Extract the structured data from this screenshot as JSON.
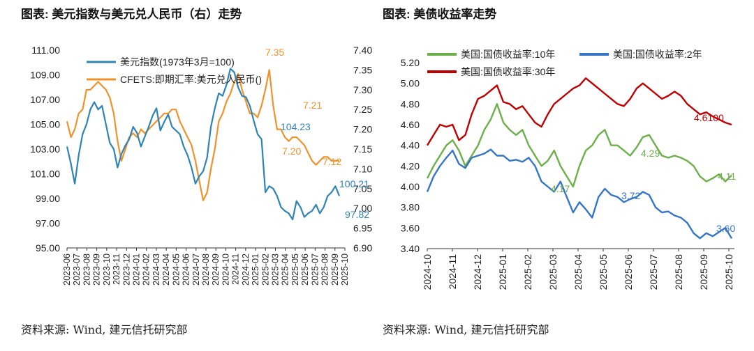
{
  "left": {
    "title": "图表:  美元指数与美元兑人民币（右）走势",
    "source": "资料来源:  Wind,  建元信托研究部"
  },
  "right": {
    "title": "图表:  美债收益率走势",
    "source": "资料来源:  Wind,  建元信托研究部"
  },
  "colors": {
    "blue": "#2E84B6",
    "orange": "#F0922B",
    "green": "#6BB048",
    "blue2": "#3575C8",
    "red": "#C00000"
  },
  "chart_data": [
    {
      "type": "line",
      "title": "美元指数与美元兑人民币（右）走势",
      "x_ticks": [
        "2023-06",
        "2023-07",
        "2023-08",
        "2023-09",
        "2023-10",
        "2023-11",
        "2023-12",
        "2024-01",
        "2024-02",
        "2024-03",
        "2024-04",
        "2024-05",
        "2024-06",
        "2024-07",
        "2024-08",
        "2024-09",
        "2024-10",
        "2024-11",
        "2024-12",
        "2025-01",
        "2025-02",
        "2025-03",
        "2025-04",
        "2025-05",
        "2025-06",
        "2025-07",
        "2025-08",
        "2025-09",
        "2025-10"
      ],
      "y_left_ticks": [
        "111.00",
        "109.00",
        "107.00",
        "105.00",
        "103.00",
        "101.00",
        "99.00",
        "97.00",
        "95.00"
      ],
      "y_left_lim": [
        95,
        111
      ],
      "y_right_ticks": [
        "7.40",
        "7.35",
        "7.30",
        "7.25",
        "7.20",
        "7.15",
        "7.10",
        "7.05",
        "7.00",
        "6.95",
        "6.90"
      ],
      "y_right_lim": [
        6.9,
        7.4
      ],
      "legend_position": "top-left",
      "series": [
        {
          "name": "美元指数(1973年3月=100)",
          "axis": "left",
          "color": "#2E84B6",
          "values": [
            103.2,
            101.8,
            100.2,
            102.5,
            104.2,
            105.0,
            106.2,
            106.8,
            106.2,
            106.5,
            105.0,
            103.5,
            103.0,
            101.5,
            102.6,
            103.3,
            103.8,
            104.8,
            104.3,
            103.2,
            104.0,
            104.8,
            105.7,
            106.3,
            104.5,
            105.2,
            105.8,
            104.8,
            104.5,
            104.2,
            103.2,
            102.5,
            101.5,
            100.2,
            100.8,
            101.2,
            102.3,
            104.8,
            106.3,
            107.5,
            107.3,
            108.2,
            109.5,
            109.2,
            108.0,
            107.3,
            107.2,
            106.5,
            105.3,
            104.2,
            103.8,
            99.5,
            100.0,
            99.8,
            99.2,
            98.3,
            98.0,
            97.8,
            97.3,
            98.8,
            98.3,
            97.5,
            97.8,
            98.0,
            98.5,
            97.8,
            98.3,
            99.2,
            99.5,
            100.0,
            99.21
          ]
        },
        {
          "name": "CFETS:即期汇率:美元兑人民币()",
          "axis": "right",
          "color": "#F0922B",
          "values": [
            7.22,
            7.18,
            7.2,
            7.24,
            7.25,
            7.3,
            7.3,
            7.31,
            7.32,
            7.31,
            7.3,
            7.28,
            7.24,
            7.17,
            7.12,
            7.15,
            7.18,
            7.19,
            7.18,
            7.2,
            7.19,
            7.2,
            7.21,
            7.22,
            7.23,
            7.24,
            7.24,
            7.25,
            7.25,
            7.22,
            7.2,
            7.18,
            7.16,
            7.12,
            7.07,
            7.02,
            7.04,
            7.1,
            7.15,
            7.22,
            7.24,
            7.27,
            7.29,
            7.32,
            7.34,
            7.3,
            7.27,
            7.24,
            7.24,
            7.23,
            7.26,
            7.3,
            7.35,
            7.26,
            7.2,
            7.2,
            7.18,
            7.17,
            7.18,
            7.18,
            7.17,
            7.16,
            7.14,
            7.12,
            7.11,
            7.12,
            7.13,
            7.13,
            7.12,
            7.12,
            7.12
          ]
        }
      ],
      "annotations": [
        {
          "text": "7.35",
          "series": "CFETS:即期汇率:美元兑人民币()"
        },
        {
          "text": "7.21",
          "series": "CFETS:即期汇率:美元兑人民币()"
        },
        {
          "text": "7.20",
          "series": "CFETS:即期汇率:美元兑人民币()"
        },
        {
          "text": "7.12",
          "series": "CFETS:即期汇率:美元兑人民币()"
        },
        {
          "text": "104.23",
          "series": "美元指数(1973年3月=100)"
        },
        {
          "text": "100.21",
          "series": "美元指数(1973年3月=100)"
        },
        {
          "text": "97.82",
          "series": "美元指数(1973年3月=100)"
        }
      ]
    },
    {
      "type": "line",
      "title": "美债收益率走势",
      "x_ticks": [
        "2024-10",
        "2024-11",
        "2024-12",
        "2025-01",
        "2025-02",
        "2025-03",
        "2025-04",
        "2025-05",
        "2025-06",
        "2025-07",
        "2025-08",
        "2025-09",
        "2025-10"
      ],
      "y_ticks": [
        "5.20",
        "5.00",
        "4.80",
        "4.60",
        "4.40",
        "4.20",
        "4.00",
        "3.80",
        "3.60",
        "3.40"
      ],
      "ylim": [
        3.4,
        5.2
      ],
      "legend_position": "top",
      "series": [
        {
          "name": "美国:国债收益率:10年",
          "color": "#6BB048",
          "values": [
            4.08,
            4.2,
            4.3,
            4.4,
            4.45,
            4.35,
            4.2,
            4.3,
            4.4,
            4.55,
            4.65,
            4.8,
            4.62,
            4.55,
            4.5,
            4.55,
            4.4,
            4.3,
            4.2,
            4.25,
            4.35,
            4.2,
            4.1,
            4.0,
            4.2,
            4.35,
            4.4,
            4.5,
            4.55,
            4.4,
            4.4,
            4.35,
            4.3,
            4.38,
            4.48,
            4.5,
            4.4,
            4.3,
            4.28,
            4.3,
            4.28,
            4.25,
            4.2,
            4.1,
            4.05,
            4.08,
            4.12,
            4.05,
            4.11
          ]
        },
        {
          "name": "美国:国债收益率:2年",
          "color": "#3575C8",
          "values": [
            3.95,
            4.1,
            4.2,
            4.28,
            4.35,
            4.22,
            4.18,
            4.28,
            4.3,
            4.32,
            4.36,
            4.3,
            4.3,
            4.25,
            4.26,
            4.24,
            4.28,
            4.2,
            4.05,
            4.0,
            3.95,
            4.05,
            3.9,
            3.75,
            3.85,
            3.78,
            3.7,
            3.9,
            3.98,
            3.92,
            3.9,
            3.85,
            3.88,
            3.9,
            3.95,
            3.92,
            3.8,
            3.75,
            3.76,
            3.72,
            3.7,
            3.65,
            3.55,
            3.5,
            3.55,
            3.52,
            3.56,
            3.6,
            3.5
          ]
        },
        {
          "name": "美国:国债收益率:30年",
          "color": "#C00000",
          "values": [
            4.4,
            4.5,
            4.6,
            4.58,
            4.6,
            4.45,
            4.5,
            4.7,
            4.85,
            4.88,
            4.93,
            4.98,
            4.82,
            4.8,
            4.75,
            4.78,
            4.7,
            4.62,
            4.58,
            4.7,
            4.8,
            4.85,
            4.9,
            4.95,
            4.98,
            5.05,
            5.0,
            4.95,
            4.9,
            4.85,
            4.8,
            4.78,
            4.85,
            4.95,
            5.0,
            4.95,
            4.9,
            4.85,
            4.88,
            4.92,
            4.88,
            4.8,
            4.75,
            4.7,
            4.72,
            4.68,
            4.65,
            4.62,
            4.6
          ]
        }
      ],
      "annotations": [
        {
          "text": "4.17",
          "series": "美国:国债收益率:10年"
        },
        {
          "text": "4.29",
          "series": "美国:国债收益率:10年"
        },
        {
          "text": "4.11",
          "series": "美国:国债收益率:10年"
        },
        {
          "text": "3.72",
          "series": "美国:国债收益率:2年"
        },
        {
          "text": "3.60",
          "series": "美国:国债收益率:2年"
        },
        {
          "text": "4.6100",
          "series": "美国:国债收益率:30年"
        }
      ]
    }
  ]
}
